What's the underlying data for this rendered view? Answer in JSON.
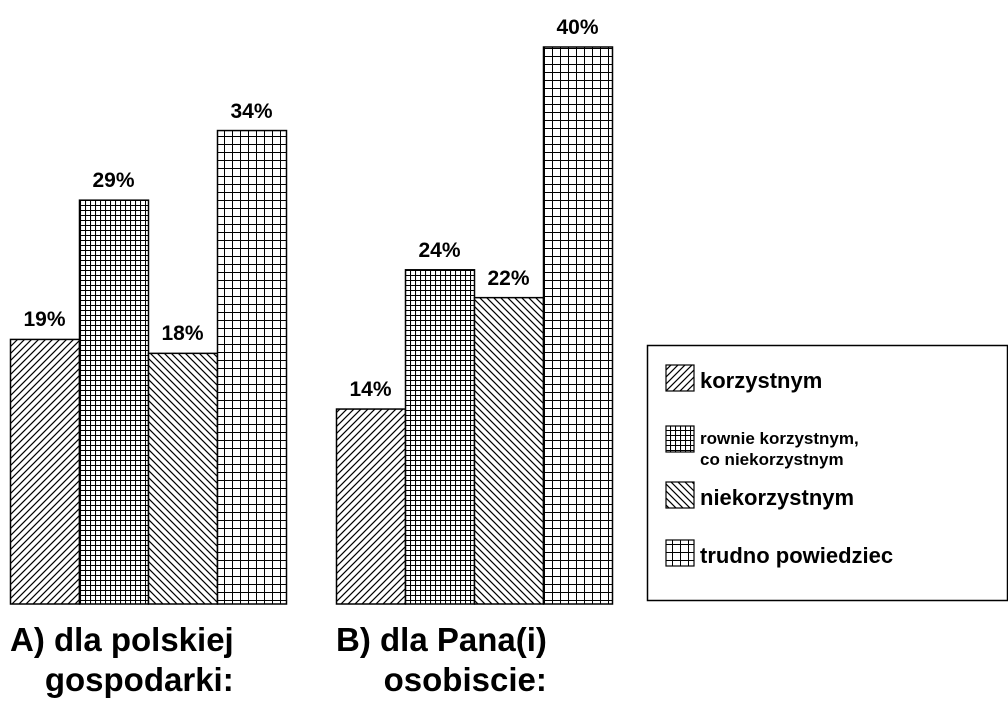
{
  "chart_data": {
    "type": "bar",
    "categories": [
      "A) dla polskiej\ngospodarki:",
      "B) dla Pana(i)\nosobiscie:"
    ],
    "series": [
      {
        "name": "korzystnym",
        "color": "#000000",
        "pattern": "hatch-right",
        "values": [
          19,
          14
        ],
        "value_labels": [
          "19%",
          "14%"
        ]
      },
      {
        "name": "rownie korzystnym,\nco niekorzystnym",
        "color": "#000000",
        "pattern": "grid-dense",
        "values": [
          29,
          24
        ],
        "value_labels": [
          "29%",
          "24%"
        ]
      },
      {
        "name": "niekorzystnym",
        "color": "#000000",
        "pattern": "hatch-left",
        "values": [
          18,
          22
        ],
        "value_labels": [
          "18%",
          "22%"
        ]
      },
      {
        "name": "trudno powiedziec",
        "color": "#000000",
        "pattern": "grid-sparse",
        "values": [
          34,
          40
        ],
        "value_labels": [
          "34%",
          "40%"
        ]
      }
    ]
  }
}
